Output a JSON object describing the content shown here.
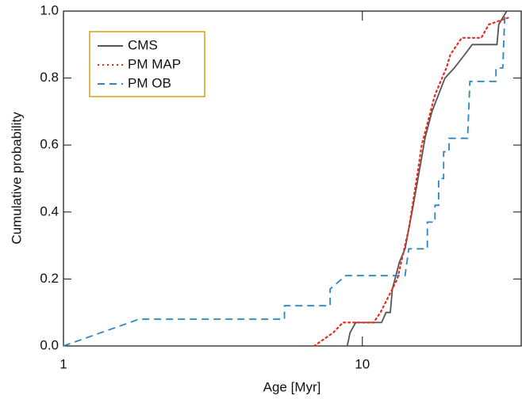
{
  "chart_data": {
    "type": "line",
    "xlabel": "Age [Myr]",
    "ylabel": "Cumulative probability",
    "xscale": "log",
    "xlim": [
      1,
      34
    ],
    "xticks": [
      1,
      10
    ],
    "ylim": [
      0,
      1
    ],
    "yticks": [
      {
        "value": 0,
        "label": "0.0"
      },
      0.2,
      0.4,
      0.6,
      0.8,
      {
        "value": 1,
        "label": "1.0"
      }
    ],
    "legend": "upper left",
    "series": [
      {
        "name": "CMS",
        "color": "#555555",
        "style": "solid",
        "x": [
          8.9,
          9.1,
          9.5,
          11.6,
          12.0,
          12.4,
          12.6,
          13.3,
          13.9,
          14.8,
          15.7,
          16.2,
          17.1,
          18.9,
          20.3,
          22.0,
          23.3,
          28.2,
          28.6,
          30.4
        ],
        "values": [
          0,
          0.04,
          0.07,
          0.07,
          0.1,
          0.1,
          0.17,
          0.25,
          0.29,
          0.42,
          0.55,
          0.62,
          0.7,
          0.8,
          0.83,
          0.87,
          0.9,
          0.9,
          0.96,
          1.0
        ]
      },
      {
        "name": "PM MAP",
        "color": "#e8291c",
        "style": "dotted",
        "x": [
          6.9,
          8.0,
          8.6,
          10.9,
          11.5,
          13.1,
          14.3,
          15.2,
          15.8,
          17.5,
          19.1,
          19.7,
          21.5,
          25.0,
          26.5,
          30.7
        ],
        "values": [
          0,
          0.04,
          0.07,
          0.07,
          0.1,
          0.2,
          0.35,
          0.5,
          0.6,
          0.75,
          0.83,
          0.87,
          0.92,
          0.92,
          0.96,
          0.98
        ]
      },
      {
        "name": "PM OB",
        "color": "#2e86c1",
        "style": "dashed",
        "x": [
          1,
          1.79,
          5.49,
          5.49,
          6.8,
          7.8,
          7.8,
          8.8,
          13.9,
          14.3,
          16.5,
          16.5,
          17.5,
          17.5,
          18.0,
          18.0,
          18.7,
          18.7,
          19.5,
          19.5,
          22.5,
          22.9,
          28.0,
          28.0,
          29.5,
          30.0
        ],
        "values": [
          0,
          0.08,
          0.08,
          0.12,
          0.12,
          0.12,
          0.17,
          0.21,
          0.21,
          0.29,
          0.29,
          0.37,
          0.37,
          0.42,
          0.42,
          0.5,
          0.5,
          0.58,
          0.58,
          0.62,
          0.62,
          0.79,
          0.79,
          0.83,
          0.83,
          1.0
        ]
      }
    ]
  }
}
